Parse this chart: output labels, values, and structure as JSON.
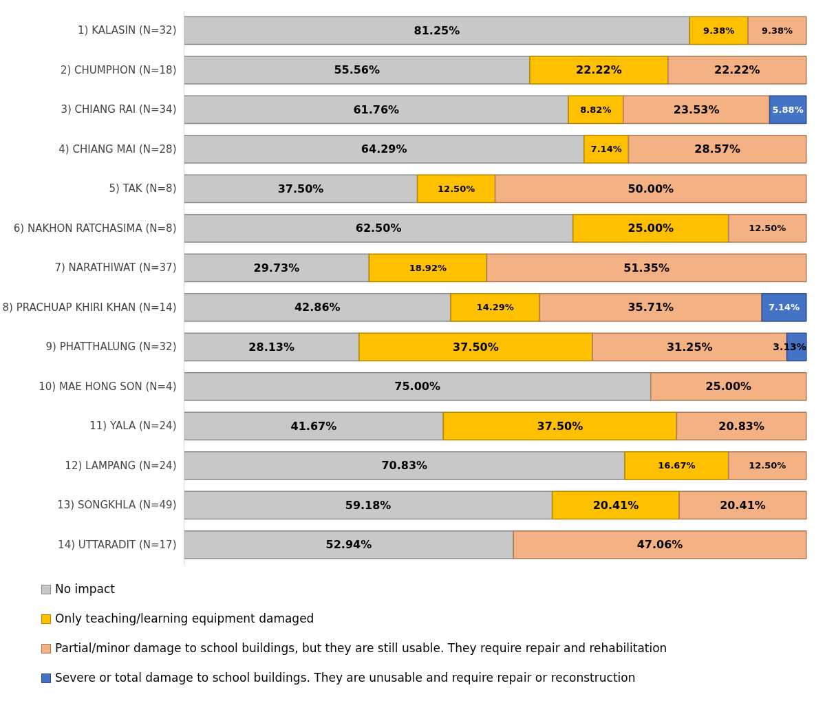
{
  "chart_data": {
    "type": "bar",
    "orientation": "horizontal",
    "stacked": true,
    "legend": "bottom left",
    "grid": false,
    "categories": [
      "1) KALASIN (N=32)",
      "2) CHUMPHON (N=18)",
      "3) CHIANG RAI (N=34)",
      "4) CHIANG MAI (N=28)",
      "5) TAK (N=8)",
      "6) NAKHON RATCHASIMA (N=8)",
      "7) NARATHIWAT (N=37)",
      "8) PRACHUAP KHIRI KHAN (N=14)",
      "9) PHATTHALUNG (N=32)",
      "10) MAE HONG SON (N=4)",
      "11) YALA (N=24)",
      "12) LAMPANG (N=24)",
      "13) SONGKHLA (N=49)",
      "14) UTTARADIT (N=17)"
    ],
    "series": [
      {
        "name": "No impact",
        "color": "#c8c8c8",
        "values": [
          81.25,
          55.56,
          61.76,
          64.29,
          37.5,
          62.5,
          29.73,
          42.86,
          28.13,
          75.0,
          41.67,
          70.83,
          59.18,
          52.94
        ],
        "value_labels": [
          "81.25%",
          "55.56%",
          "61.76%",
          "64.29%",
          "37.50%",
          "62.50%",
          "29.73%",
          "42.86%",
          "28.13%",
          "75.00%",
          "41.67%",
          "70.83%",
          "59.18%",
          "52.94%"
        ]
      },
      {
        "name": "Only teaching/learning equipment damaged",
        "color": "#ffc000",
        "values": [
          9.38,
          22.22,
          8.82,
          7.14,
          12.5,
          25.0,
          18.92,
          14.29,
          37.5,
          null,
          37.5,
          16.67,
          20.41,
          null
        ],
        "value_labels": [
          "9.38%",
          "22.22%",
          "8.82%",
          "7.14%",
          "12.50%",
          "25.00%",
          "18.92%",
          "14.29%",
          "37.50%",
          null,
          "37.50%",
          "16.67%",
          "20.41%",
          null
        ]
      },
      {
        "name": "Partial/minor damage to school buildings, but they are still usable. They require repair and rehabilitation",
        "color": "#f4b183",
        "values": [
          9.38,
          22.22,
          23.53,
          28.57,
          50.0,
          12.5,
          51.35,
          35.71,
          31.25,
          25.0,
          20.83,
          12.5,
          20.41,
          47.06
        ],
        "value_labels": [
          "9.38%",
          "22.22%",
          "23.53%",
          "28.57%",
          "50.00%",
          "12.50%",
          "51.35%",
          "35.71%",
          "31.25%",
          "25.00%",
          "20.83%",
          "12.50%",
          "20.41%",
          "47.06%"
        ]
      },
      {
        "name": "Severe or total damage to school buildings. They are unusable and require repair or reconstruction",
        "color": "#4472c4",
        "values": [
          null,
          null,
          5.88,
          null,
          null,
          null,
          null,
          7.14,
          3.13,
          null,
          null,
          null,
          null,
          null
        ],
        "value_labels": [
          null,
          null,
          "5.88%",
          null,
          null,
          null,
          null,
          "7.14%",
          "3.13%",
          null,
          null,
          null,
          null,
          null
        ]
      }
    ]
  }
}
